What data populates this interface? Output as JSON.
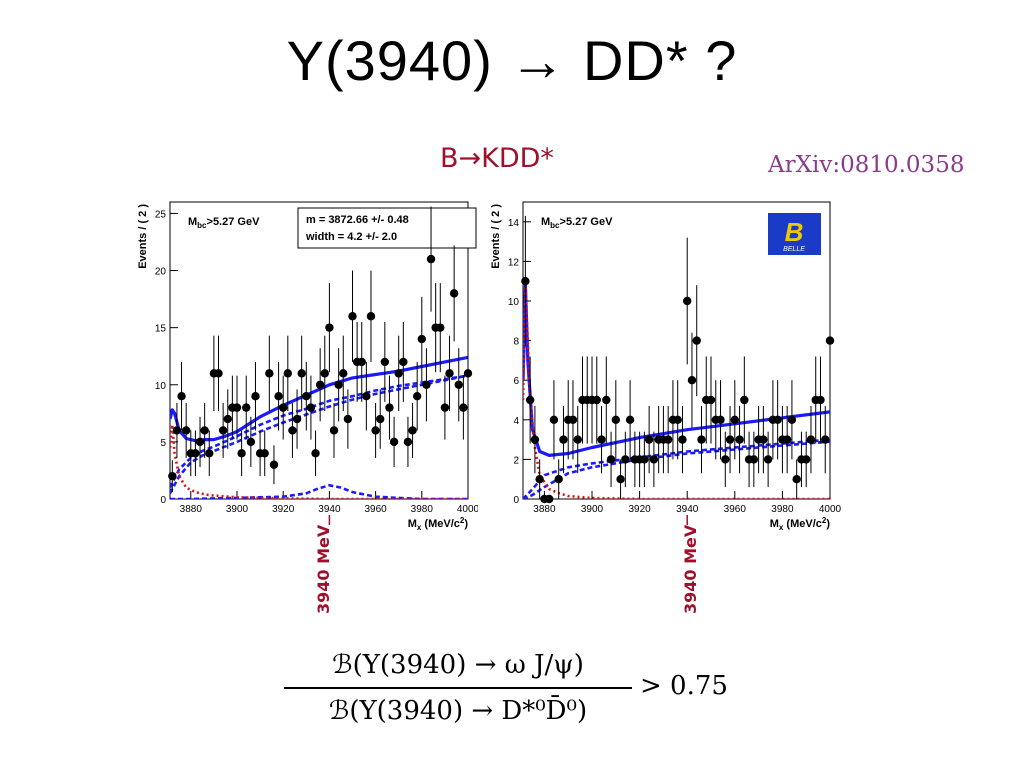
{
  "slide": {
    "title": "Y(3940) → DD* ?",
    "subtitle": "B→KDD*",
    "arxiv": "ArXiv:0810.0358",
    "marker_label": "3940 MeV",
    "formula": {
      "numerator": "ℬ(Y(3940) → ω J/ψ)",
      "denominator": "ℬ(Y(3940) → D*⁰D̄⁰)",
      "relation": "> 0.75"
    }
  },
  "colors": {
    "total_fit": "#1a1aff",
    "background_fit": "#1a1aff",
    "signal": "#e01010",
    "data": "#000000",
    "accent": "#a0102a"
  },
  "chart_data": [
    {
      "type": "scatter",
      "xlabel": "M",
      "xlabel_sub": "x",
      "xlabel_unit": "(MeV/c",
      "ylabel": "Events / ( 2 )",
      "cut_label": "M",
      "cut_sub": "bc",
      "cut_rest": ">5.27 GeV",
      "fit_box": [
        "m =  3872.66 +/- 0.48",
        "width =  4.2 +/- 2.0"
      ],
      "xlim": [
        3871,
        4000
      ],
      "ylim": [
        0,
        26
      ],
      "xticks": [
        3880,
        3900,
        3920,
        3940,
        3960,
        3980,
        4000
      ],
      "yticks": [
        0,
        5,
        10,
        15,
        20,
        25
      ],
      "points": {
        "x": [
          3872,
          3874,
          3876,
          3878,
          3880,
          3882,
          3884,
          3886,
          3888,
          3890,
          3892,
          3894,
          3896,
          3898,
          3900,
          3902,
          3904,
          3906,
          3908,
          3910,
          3912,
          3914,
          3916,
          3918,
          3920,
          3922,
          3924,
          3926,
          3928,
          3930,
          3932,
          3934,
          3936,
          3938,
          3940,
          3942,
          3944,
          3946,
          3948,
          3950,
          3952,
          3954,
          3956,
          3958,
          3960,
          3962,
          3964,
          3966,
          3968,
          3970,
          3972,
          3974,
          3976,
          3978,
          3980,
          3982,
          3984,
          3986,
          3988,
          3990,
          3992,
          3994,
          3996,
          3998,
          4000
        ],
        "y": [
          2,
          6,
          9,
          6,
          4,
          4,
          5,
          6,
          4,
          11,
          11,
          6,
          7,
          8,
          8,
          4,
          8,
          5,
          9,
          4,
          4,
          11,
          3,
          9,
          8,
          11,
          6,
          7,
          11,
          9,
          8,
          4,
          10,
          11,
          15,
          6,
          10,
          11,
          7,
          16,
          12,
          12,
          9,
          16,
          6,
          7,
          12,
          8,
          5,
          11,
          12,
          5,
          6,
          9,
          14,
          10,
          21,
          15,
          15,
          8,
          11,
          18,
          10,
          8,
          11
        ],
        "err": [
          1.4,
          2.4,
          3,
          2.4,
          2,
          2,
          2.2,
          2.4,
          2,
          3.3,
          3.3,
          2.4,
          2.6,
          2.8,
          2.8,
          2,
          2.8,
          2.2,
          3,
          2,
          2,
          3.3,
          1.7,
          3,
          2.8,
          3.3,
          2.4,
          2.6,
          3.3,
          3,
          2.8,
          2,
          3.2,
          3.3,
          3.9,
          2.4,
          3.2,
          3.3,
          2.6,
          4,
          3.5,
          3.5,
          3,
          4,
          2.4,
          2.6,
          3.5,
          2.8,
          2.2,
          3.3,
          3.5,
          2.2,
          2.4,
          3,
          3.7,
          3.2,
          4.6,
          3.9,
          3.9,
          2.8,
          3.3,
          4.2,
          3.2,
          2.8,
          3.3
        ]
      },
      "curves": [
        {
          "name": "total",
          "style": "solid",
          "color": "#1a1aff",
          "x": [
            3871,
            3872,
            3873,
            3875,
            3878,
            3882,
            3886,
            3890,
            3895,
            3900,
            3910,
            3920,
            3930,
            3940,
            3950,
            3960,
            3970,
            3980,
            3990,
            4000
          ],
          "y": [
            7,
            7.8,
            7.5,
            6,
            5.3,
            5.1,
            5.2,
            5.2,
            5.5,
            5.9,
            7.2,
            8.2,
            9.1,
            10,
            10.6,
            10.9,
            11.2,
            11.6,
            12,
            12.4
          ]
        },
        {
          "name": "background 1",
          "style": "dashed",
          "color": "#1a1aff",
          "x": [
            3871,
            3875,
            3880,
            3885,
            3890,
            3900,
            3910,
            3920,
            3930,
            3940,
            3950,
            3960,
            3970,
            3980,
            3990,
            4000
          ],
          "y": [
            0.5,
            2,
            3.2,
            3.8,
            4.2,
            5,
            5.9,
            6.7,
            7.4,
            8.1,
            8.7,
            9.2,
            9.6,
            10,
            10.4,
            10.8
          ]
        },
        {
          "name": "background 2",
          "style": "dashed",
          "color": "#1a1aff",
          "x": [
            3871,
            3875,
            3880,
            3885,
            3890,
            3900,
            3910,
            3920,
            3930,
            3940,
            3950,
            3960,
            3970,
            3980,
            3990,
            4000
          ],
          "y": [
            1,
            2.6,
            3.6,
            4.2,
            4.6,
            5.5,
            6.5,
            7.3,
            7.9,
            8.6,
            9,
            9.5,
            9.9,
            10.2,
            10.5,
            10.8
          ]
        },
        {
          "name": "resonance",
          "style": "dashed",
          "color": "#1a1aff",
          "x": [
            3871,
            3880,
            3900,
            3920,
            3930,
            3935,
            3940,
            3945,
            3950,
            3960,
            3970,
            3980,
            4000
          ],
          "y": [
            0,
            0,
            0.1,
            0.2,
            0.5,
            0.9,
            1.2,
            1,
            0.6,
            0.2,
            0.1,
            0,
            0
          ]
        },
        {
          "name": "signal",
          "style": "dotted",
          "color": "#e01010",
          "x": [
            3871,
            3872,
            3873,
            3875,
            3878,
            3882,
            3886,
            3890,
            3900,
            3920,
            3940,
            3960,
            3980,
            4000
          ],
          "y": [
            4.5,
            6.5,
            4,
            2,
            1,
            0.6,
            0.4,
            0.3,
            0.15,
            0.05,
            0,
            0,
            0,
            0
          ]
        }
      ],
      "marker_x": 3940
    },
    {
      "type": "scatter",
      "xlabel": "M",
      "xlabel_sub": "x",
      "xlabel_unit": "(MeV/c",
      "ylabel": "Events / ( 2 )",
      "cut_label": "M",
      "cut_sub": "bc",
      "cut_rest": ">5.27 GeV",
      "logo_text": "BELLE",
      "xlim": [
        3871,
        4000
      ],
      "ylim": [
        0,
        15
      ],
      "xticks": [
        3880,
        3900,
        3920,
        3940,
        3960,
        3980,
        4000
      ],
      "yticks": [
        0,
        2,
        4,
        6,
        8,
        10,
        12,
        14
      ],
      "points": {
        "x": [
          3872,
          3874,
          3876,
          3878,
          3880,
          3882,
          3884,
          3886,
          3888,
          3890,
          3892,
          3894,
          3896,
          3898,
          3900,
          3902,
          3904,
          3906,
          3908,
          3910,
          3912,
          3914,
          3916,
          3918,
          3920,
          3922,
          3924,
          3926,
          3928,
          3930,
          3932,
          3934,
          3936,
          3938,
          3940,
          3942,
          3944,
          3946,
          3948,
          3950,
          3952,
          3954,
          3956,
          3958,
          3960,
          3962,
          3964,
          3966,
          3968,
          3970,
          3972,
          3974,
          3976,
          3978,
          3980,
          3982,
          3984,
          3986,
          3988,
          3990,
          3992,
          3994,
          3996,
          3998,
          4000
        ],
        "y": [
          11,
          5,
          3,
          1,
          0,
          0,
          4,
          1,
          3,
          4,
          4,
          3,
          5,
          5,
          5,
          5,
          3,
          5,
          2,
          4,
          1,
          2,
          4,
          2,
          2,
          2,
          3,
          2,
          3,
          3,
          3,
          4,
          4,
          3,
          10,
          6,
          8,
          3,
          5,
          5,
          4,
          4,
          2,
          3,
          4,
          3,
          5,
          2,
          2,
          3,
          3,
          2,
          4,
          4,
          3,
          3,
          4,
          1,
          2,
          2,
          3,
          5,
          5,
          3,
          8
        ],
        "err": [
          3.3,
          2.2,
          1.7,
          1,
          0,
          0,
          2,
          1,
          1.7,
          2,
          2,
          1.7,
          2.2,
          2.2,
          2.2,
          2.2,
          1.7,
          2.2,
          1.4,
          2,
          1,
          1.4,
          2,
          1.4,
          1.4,
          1.4,
          1.7,
          1.4,
          1.7,
          1.7,
          1.7,
          2,
          2,
          1.7,
          3.2,
          2.4,
          2.8,
          1.7,
          2.2,
          2.2,
          2,
          2,
          1.4,
          1.7,
          2,
          1.7,
          2.2,
          1.4,
          1.4,
          1.7,
          1.7,
          1.4,
          2,
          2,
          1.7,
          1.7,
          2,
          1,
          1.4,
          1.4,
          1.7,
          2.2,
          2.2,
          1.7,
          2.8
        ]
      },
      "curves": [
        {
          "name": "total",
          "style": "solid",
          "color": "#1a1aff",
          "x": [
            3871,
            3872,
            3873,
            3875,
            3878,
            3882,
            3886,
            3890,
            3900,
            3920,
            3940,
            3960,
            3980,
            4000
          ],
          "y": [
            6,
            10.8,
            7,
            3.5,
            2.4,
            2.2,
            2.25,
            2.3,
            2.6,
            3.1,
            3.5,
            3.8,
            4.1,
            4.4
          ]
        },
        {
          "name": "background 1",
          "style": "dashed",
          "color": "#1a1aff",
          "x": [
            3871,
            3875,
            3880,
            3890,
            3900,
            3920,
            3940,
            3960,
            3980,
            4000
          ],
          "y": [
            0,
            0.5,
            1.2,
            1.6,
            1.8,
            2.1,
            2.4,
            2.6,
            2.8,
            3
          ]
        },
        {
          "name": "background 2",
          "style": "dashed",
          "color": "#1a1aff",
          "x": [
            3871,
            3875,
            3880,
            3890,
            3900,
            3920,
            3940,
            3960,
            3980,
            4000
          ],
          "y": [
            0,
            0.2,
            0.6,
            1.3,
            1.6,
            2,
            2.3,
            2.5,
            2.7,
            2.9
          ]
        },
        {
          "name": "signal",
          "style": "dotted",
          "color": "#e01010",
          "x": [
            3871,
            3872,
            3873,
            3874,
            3876,
            3878,
            3882,
            3886,
            3890,
            3900,
            3920,
            3960,
            4000
          ],
          "y": [
            5,
            11,
            8,
            5,
            2.6,
            1.2,
            0.5,
            0.3,
            0.15,
            0.05,
            0,
            0,
            0
          ]
        }
      ],
      "marker_x": 3940
    }
  ]
}
